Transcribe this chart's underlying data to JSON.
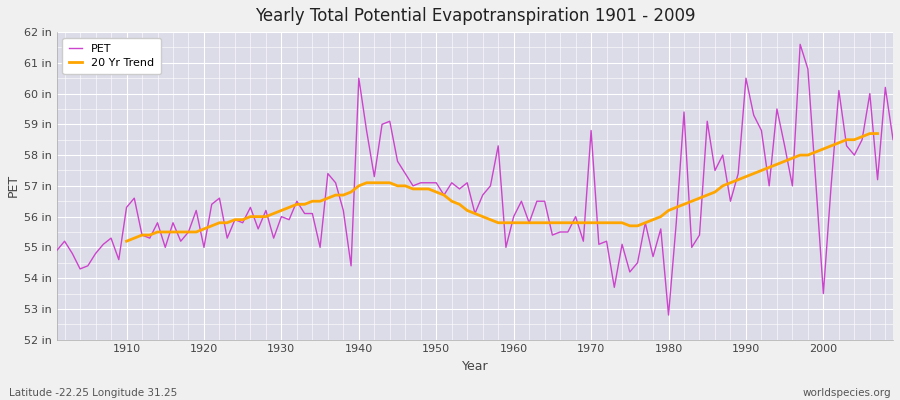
{
  "title": "Yearly Total Potential Evapotranspiration 1901 - 2009",
  "xlabel": "Year",
  "ylabel": "PET",
  "subtitle_left": "Latitude -22.25 Longitude 31.25",
  "subtitle_right": "worldspecies.org",
  "ylim": [
    52,
    62
  ],
  "years": [
    1901,
    1902,
    1903,
    1904,
    1905,
    1906,
    1907,
    1908,
    1909,
    1910,
    1911,
    1912,
    1913,
    1914,
    1915,
    1916,
    1917,
    1918,
    1919,
    1920,
    1921,
    1922,
    1923,
    1924,
    1925,
    1926,
    1927,
    1928,
    1929,
    1930,
    1931,
    1932,
    1933,
    1934,
    1935,
    1936,
    1937,
    1938,
    1939,
    1940,
    1941,
    1942,
    1943,
    1944,
    1945,
    1946,
    1947,
    1948,
    1949,
    1950,
    1951,
    1952,
    1953,
    1954,
    1955,
    1956,
    1957,
    1958,
    1959,
    1960,
    1961,
    1962,
    1963,
    1964,
    1965,
    1966,
    1967,
    1968,
    1969,
    1970,
    1971,
    1972,
    1973,
    1974,
    1975,
    1976,
    1977,
    1978,
    1979,
    1980,
    1981,
    1982,
    1983,
    1984,
    1985,
    1986,
    1987,
    1988,
    1989,
    1990,
    1991,
    1992,
    1993,
    1994,
    1995,
    1996,
    1997,
    1998,
    1999,
    2000,
    2001,
    2002,
    2003,
    2004,
    2005,
    2006,
    2007,
    2008,
    2009
  ],
  "pet": [
    54.9,
    55.2,
    54.8,
    54.3,
    54.4,
    54.8,
    55.1,
    55.3,
    54.6,
    56.3,
    56.6,
    55.4,
    55.3,
    55.8,
    55.0,
    55.8,
    55.2,
    55.5,
    56.2,
    55.0,
    56.4,
    56.6,
    55.3,
    55.9,
    55.8,
    56.3,
    55.6,
    56.2,
    55.3,
    56.0,
    55.9,
    56.5,
    56.1,
    56.1,
    55.0,
    57.4,
    57.1,
    56.2,
    54.4,
    60.5,
    58.8,
    57.3,
    59.0,
    59.1,
    57.8,
    57.4,
    57.0,
    57.1,
    57.1,
    57.1,
    56.7,
    57.1,
    56.9,
    57.1,
    56.1,
    56.7,
    57.0,
    58.3,
    55.0,
    56.0,
    56.5,
    55.8,
    56.5,
    56.5,
    55.4,
    55.5,
    55.5,
    56.0,
    55.2,
    58.8,
    55.1,
    55.2,
    53.7,
    55.1,
    54.2,
    54.5,
    55.8,
    54.7,
    55.6,
    52.8,
    55.8,
    59.4,
    55.0,
    55.4,
    59.1,
    57.5,
    58.0,
    56.5,
    57.4,
    60.5,
    59.3,
    58.8,
    57.0,
    59.5,
    58.3,
    57.0,
    61.6,
    60.8,
    57.2,
    53.5,
    57.0,
    60.1,
    58.3,
    58.0,
    58.5,
    60.0,
    57.2,
    60.2,
    58.5
  ],
  "trend": [
    null,
    null,
    null,
    null,
    null,
    null,
    null,
    null,
    null,
    55.2,
    55.3,
    55.4,
    55.4,
    55.5,
    55.5,
    55.5,
    55.5,
    55.5,
    55.5,
    55.6,
    55.7,
    55.8,
    55.8,
    55.9,
    55.9,
    56.0,
    56.0,
    56.0,
    56.1,
    56.2,
    56.3,
    56.4,
    56.4,
    56.5,
    56.5,
    56.6,
    56.7,
    56.7,
    56.8,
    57.0,
    57.1,
    57.1,
    57.1,
    57.1,
    57.0,
    57.0,
    56.9,
    56.9,
    56.9,
    56.8,
    56.7,
    56.5,
    56.4,
    56.2,
    56.1,
    56.0,
    55.9,
    55.8,
    55.8,
    55.8,
    55.8,
    55.8,
    55.8,
    55.8,
    55.8,
    55.8,
    55.8,
    55.8,
    55.8,
    55.8,
    55.8,
    55.8,
    55.8,
    55.8,
    55.7,
    55.7,
    55.8,
    55.9,
    56.0,
    56.2,
    56.3,
    56.4,
    56.5,
    56.6,
    56.7,
    56.8,
    57.0,
    57.1,
    57.2,
    57.3,
    57.4,
    57.5,
    57.6,
    57.7,
    57.8,
    57.9,
    58.0,
    58.0,
    58.1,
    58.2,
    58.3,
    58.4,
    58.5,
    58.5,
    58.6,
    58.7,
    58.7
  ],
  "pet_color": "#cc44cc",
  "trend_color": "#ffa500",
  "bg_color": "#f0f0f0",
  "plot_bg_color": "#dcdce8",
  "grid_major_color": "#ffffff",
  "grid_minor_color": "#ffffff"
}
